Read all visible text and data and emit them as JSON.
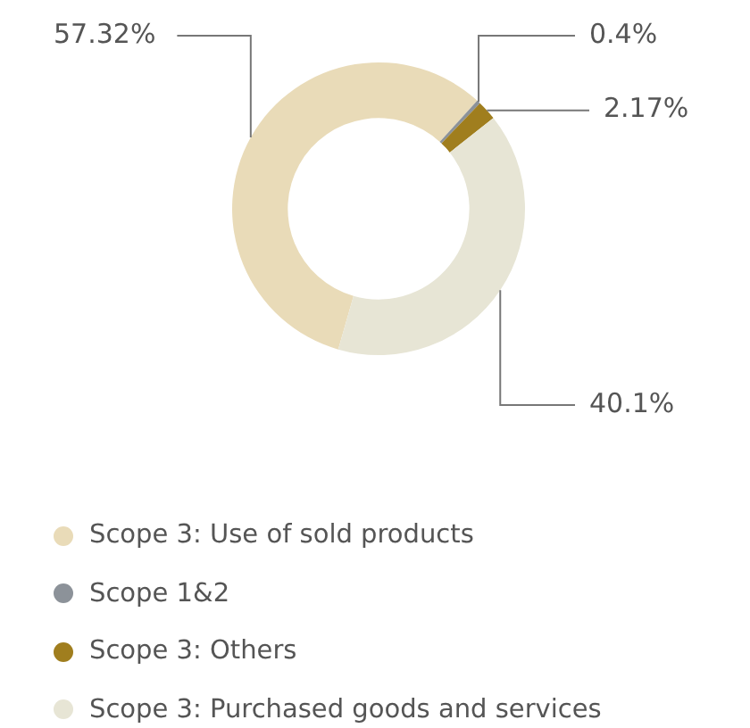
{
  "chart_data": {
    "type": "donut",
    "categories": [
      "Scope 3: Use of sold products",
      "Scope 1&2",
      "Scope 3: Others",
      "Scope 3: Purchased goods and services"
    ],
    "values": [
      57.32,
      0.4,
      2.17,
      40.1
    ],
    "colors": [
      "#e9dbb8",
      "#8c9299",
      "#a07e1e",
      "#e7e5d5"
    ],
    "value_labels": [
      "57.32%",
      "0.4%",
      "2.17%",
      "40.1%"
    ],
    "legend": "bottom"
  }
}
